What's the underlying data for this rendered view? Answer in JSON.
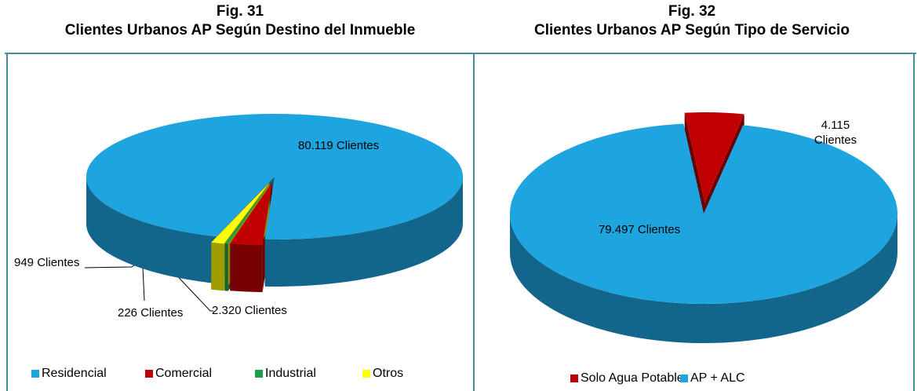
{
  "chart_data": [
    {
      "type": "pie",
      "figure": "Fig. 31",
      "title": "Clientes Urbanos AP Según Destino del Inmueble",
      "categories": [
        "Residencial",
        "Comercial",
        "Industrial",
        "Otros"
      ],
      "values": [
        80119,
        2320,
        226,
        949
      ],
      "value_labels": [
        "80.119 Clientes",
        "2.320 Clientes",
        "226 Clientes",
        "949 Clientes"
      ],
      "colors": [
        "#1ea5e0",
        "#c00000",
        "#1e9e50",
        "#ffff00"
      ],
      "legend": "bottom"
    },
    {
      "type": "pie",
      "figure": "Fig. 32",
      "title": "Clientes Urbanos AP Según Tipo de Servicio",
      "categories": [
        "Solo Agua Potable",
        "AP + ALC"
      ],
      "values": [
        4115,
        79497
      ],
      "value_labels": [
        "4.115 Clientes",
        "79.497 Clientes"
      ],
      "colors": [
        "#c00000",
        "#1ea5e0"
      ],
      "legend": "bottom"
    }
  ]
}
